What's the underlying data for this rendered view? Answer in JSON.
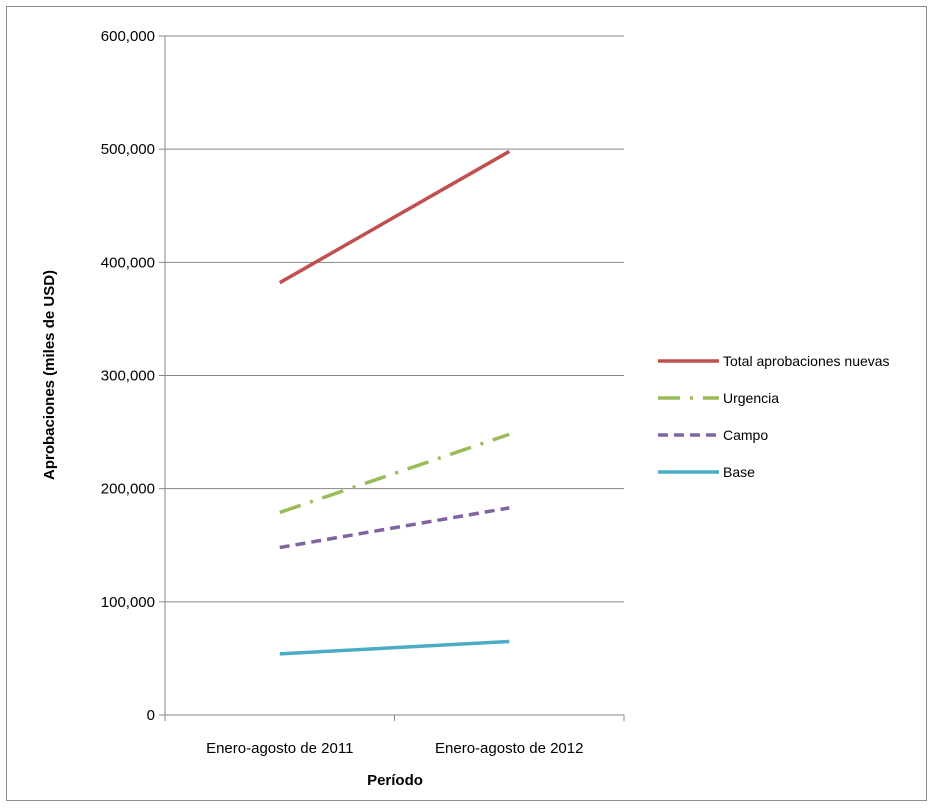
{
  "chart_data": {
    "type": "line",
    "xlabel": "Período",
    "ylabel": "Aprobaciones (miles de USD)",
    "categories": [
      "Enero-agosto de 2011",
      "Enero-agosto de 2012"
    ],
    "ylim": [
      0,
      600000
    ],
    "yticks": [
      0,
      100000,
      200000,
      300000,
      400000,
      500000,
      600000
    ],
    "ytick_labels": [
      "0",
      "100,000",
      "200,000",
      "300,000",
      "400,000",
      "500,000",
      "600,000"
    ],
    "grid": true,
    "legend_position": "right",
    "series": [
      {
        "name": "Total aprobaciones nuevas",
        "values": [
          382000,
          498000
        ],
        "color": "#c0504d",
        "style": "solid"
      },
      {
        "name": "Urgencia",
        "values": [
          179000,
          248000
        ],
        "color": "#9bbb59",
        "style": "dash-dot"
      },
      {
        "name": "Campo",
        "values": [
          148000,
          183000
        ],
        "color": "#8064a2",
        "style": "dashed"
      },
      {
        "name": "Base",
        "values": [
          54000,
          65000
        ],
        "color": "#4bacc6",
        "style": "solid"
      }
    ]
  }
}
